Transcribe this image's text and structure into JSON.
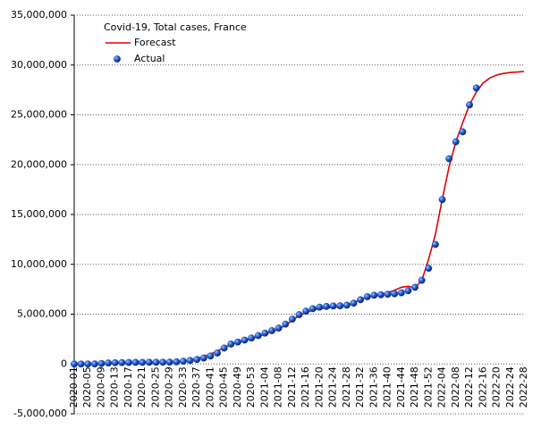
{
  "chart_data": {
    "type": "line",
    "title": "Covid-19, Total cases, France",
    "categories": [
      "2020-01",
      null,
      "2020-05",
      null,
      "2020-09",
      null,
      "2020-13",
      null,
      "2020-17",
      null,
      "2020-21",
      null,
      "2020-25",
      null,
      "2020-29",
      null,
      "2020-33",
      null,
      "2020-37",
      null,
      "2020-41",
      null,
      "2020-45",
      null,
      "2020-49",
      null,
      "2020-53",
      null,
      "2021-04",
      null,
      "2021-08",
      null,
      "2021-12",
      null,
      "2021-16",
      null,
      "2021-20",
      null,
      "2021-24",
      null,
      "2021-28",
      null,
      "2021-32",
      null,
      "2021-36",
      null,
      "2021-40",
      null,
      "2021-44",
      null,
      "2021-48",
      null,
      "2021-52",
      null,
      "2022-04",
      null,
      "2022-08",
      null,
      "2022-12",
      null,
      "2022-16",
      null,
      "2022-20",
      null,
      "2022-24",
      null,
      "2022-28"
    ],
    "series": [
      {
        "name": "Forecast",
        "type": "line",
        "color": "#e00000",
        "values": [
          0,
          0,
          0,
          10000,
          40000,
          80000,
          120000,
          140000,
          150000,
          160000,
          170000,
          170000,
          180000,
          180000,
          200000,
          230000,
          300000,
          400000,
          550000,
          750000,
          1000000,
          1300000,
          1650000,
          1950000,
          2150000,
          2350000,
          2550000,
          2750000,
          3000000,
          3250000,
          3500000,
          3900000,
          4400000,
          4850000,
          5150000,
          5400000,
          5550000,
          5620000,
          5680000,
          5750000,
          5900000,
          6150000,
          6450000,
          6700000,
          6850000,
          7000000,
          7150000,
          7400000,
          7700000,
          7800000,
          7650000,
          8400000,
          10500000,
          13000000,
          16500000,
          19800000,
          22300000,
          24200000,
          26000000,
          27300000,
          28200000,
          28700000,
          29000000,
          29150000,
          29250000,
          29300000,
          29350000
        ]
      },
      {
        "name": "Actual",
        "type": "scatter",
        "color": "#1f4fc8",
        "values": [
          0,
          0,
          0,
          10000,
          50000,
          100000,
          130000,
          140000,
          150000,
          160000,
          160000,
          170000,
          170000,
          180000,
          190000,
          220000,
          280000,
          350000,
          450000,
          600000,
          800000,
          1100000,
          1600000,
          2000000,
          2200000,
          2400000,
          2600000,
          2850000,
          3100000,
          3350000,
          3600000,
          4000000,
          4500000,
          4950000,
          5300000,
          5550000,
          5700000,
          5780000,
          5820000,
          5840000,
          5900000,
          6100000,
          6450000,
          6750000,
          6900000,
          6950000,
          7000000,
          7050000,
          7150000,
          7350000,
          7700000,
          8400000,
          9600000,
          12000000,
          16500000,
          20600000,
          22300000,
          23300000,
          26000000,
          27700000,
          null,
          null,
          null,
          null,
          null,
          null,
          null
        ]
      }
    ],
    "ylim": [
      -5000000,
      35000000
    ],
    "yticks": [
      {
        "value": -5000000,
        "label": "-5,000,000"
      },
      0,
      {
        "value": 5000000,
        "label": "5,000,000"
      },
      {
        "value": 10000000,
        "label": "10,000,000"
      },
      {
        "value": 15000000,
        "label": "15,000,000"
      },
      {
        "value": 20000000,
        "label": "20,000,000"
      },
      {
        "value": 25000000,
        "label": "25,000,000"
      },
      {
        "value": 30000000,
        "label": "30,000,000"
      },
      {
        "value": 35000000,
        "label": "35,000,000"
      }
    ],
    "grid": true
  }
}
